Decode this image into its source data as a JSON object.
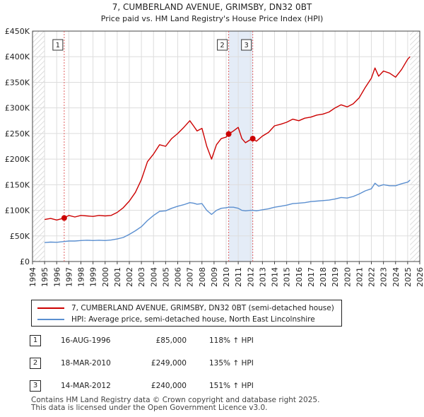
{
  "chart_data": {
    "type": "line",
    "title": "7, CUMBERLAND AVENUE, GRIMSBY, DN32 0BT",
    "subtitle": "Price paid vs. HM Land Registry's House Price Index (HPI)",
    "x_ticks": [
      "1994",
      "1995",
      "1996",
      "1997",
      "1998",
      "1999",
      "2000",
      "2001",
      "2002",
      "2003",
      "2004",
      "2005",
      "2006",
      "2007",
      "2008",
      "2009",
      "2010",
      "2011",
      "2012",
      "2013",
      "2014",
      "2015",
      "2016",
      "2017",
      "2018",
      "2019",
      "2020",
      "2021",
      "2022",
      "2023",
      "2024",
      "2025",
      "2026"
    ],
    "y_ticks": [
      "£0",
      "£50K",
      "£100K",
      "£150K",
      "£200K",
      "£250K",
      "£300K",
      "£350K",
      "£400K",
      "£450K"
    ],
    "xlim": [
      1994,
      2026
    ],
    "ylim": [
      0,
      450000
    ],
    "grid": true,
    "hatched_ranges": [
      [
        1994,
        1995
      ],
      [
        2025.2,
        2026
      ]
    ],
    "series": [
      {
        "name": "7, CUMBERLAND AVENUE, GRIMSBY, DN32 0BT (semi-detached house)",
        "color": "#cc0000",
        "x": [
          1995.0,
          1995.5,
          1996.0,
          1996.62,
          1997.0,
          1997.5,
          1998.0,
          1998.5,
          1999.0,
          1999.5,
          2000.0,
          2000.5,
          2001.0,
          2001.5,
          2002.0,
          2002.5,
          2003.0,
          2003.5,
          2004.0,
          2004.5,
          2005.0,
          2005.5,
          2006.0,
          2006.5,
          2007.0,
          2007.3,
          2007.6,
          2008.0,
          2008.4,
          2008.8,
          2009.2,
          2009.6,
          2010.0,
          2010.21,
          2010.6,
          2011.0,
          2011.3,
          2011.6,
          2012.0,
          2012.2,
          2012.5,
          2013.0,
          2013.5,
          2014.0,
          2014.5,
          2015.0,
          2015.5,
          2016.0,
          2016.5,
          2017.0,
          2017.5,
          2018.0,
          2018.5,
          2019.0,
          2019.5,
          2020.0,
          2020.5,
          2021.0,
          2021.5,
          2022.0,
          2022.3,
          2022.6,
          2023.0,
          2023.5,
          2024.0,
          2024.5,
          2025.0,
          2025.2
        ],
        "values": [
          82000,
          84000,
          81000,
          85000,
          90000,
          87000,
          90000,
          89000,
          88000,
          90000,
          89000,
          90000,
          96000,
          105000,
          118000,
          135000,
          160000,
          195000,
          210000,
          228000,
          225000,
          240000,
          250000,
          262000,
          275000,
          265000,
          255000,
          260000,
          225000,
          200000,
          228000,
          240000,
          243000,
          249000,
          255000,
          262000,
          240000,
          232000,
          238000,
          240000,
          235000,
          245000,
          252000,
          265000,
          268000,
          272000,
          278000,
          275000,
          280000,
          282000,
          286000,
          288000,
          292000,
          300000,
          306000,
          302000,
          308000,
          320000,
          340000,
          358000,
          378000,
          362000,
          372000,
          368000,
          360000,
          375000,
          395000,
          400000
        ]
      },
      {
        "name": "HPI: Average price, semi-detached house, North East Lincolnshire",
        "color": "#5b8fd0",
        "x": [
          1995.0,
          1995.5,
          1996.0,
          1996.62,
          1997.0,
          1997.5,
          1998.0,
          1998.5,
          1999.0,
          1999.5,
          2000.0,
          2000.5,
          2001.0,
          2001.5,
          2002.0,
          2002.5,
          2003.0,
          2003.5,
          2004.0,
          2004.5,
          2005.0,
          2005.5,
          2006.0,
          2006.5,
          2007.0,
          2007.3,
          2007.6,
          2008.0,
          2008.4,
          2008.8,
          2009.2,
          2009.6,
          2010.0,
          2010.21,
          2010.6,
          2011.0,
          2011.3,
          2011.6,
          2012.0,
          2012.2,
          2012.5,
          2013.0,
          2013.5,
          2014.0,
          2014.5,
          2015.0,
          2015.5,
          2016.0,
          2016.5,
          2017.0,
          2017.5,
          2018.0,
          2018.5,
          2019.0,
          2019.5,
          2020.0,
          2020.5,
          2021.0,
          2021.5,
          2022.0,
          2022.3,
          2022.6,
          2023.0,
          2023.5,
          2024.0,
          2024.5,
          2025.0,
          2025.2
        ],
        "values": [
          37000,
          38000,
          37500,
          39000,
          40000,
          40000,
          41000,
          41500,
          41000,
          41500,
          41000,
          42000,
          44000,
          47000,
          53000,
          60000,
          68000,
          80000,
          90000,
          98000,
          99000,
          104000,
          108000,
          111000,
          115000,
          114000,
          112000,
          113000,
          100000,
          92000,
          100000,
          104000,
          105000,
          106000,
          106000,
          104000,
          100000,
          99000,
          100000,
          100000,
          99000,
          101000,
          103000,
          106000,
          108000,
          110000,
          113000,
          114000,
          115000,
          117000,
          118000,
          119000,
          120000,
          122000,
          125000,
          124000,
          127000,
          132000,
          138000,
          142000,
          153000,
          147000,
          150000,
          148000,
          148000,
          152000,
          155000,
          159000
        ]
      }
    ],
    "sales": [
      {
        "label": "1",
        "x": 1996.62,
        "value": 85000
      },
      {
        "label": "2",
        "x": 2010.21,
        "value": 249000
      },
      {
        "label": "3",
        "x": 2012.2,
        "value": 240000
      }
    ],
    "highlight_range": [
      2010.21,
      2012.2
    ]
  },
  "legend": {
    "property_label": "7, CUMBERLAND AVENUE, GRIMSBY, DN32 0BT (semi-detached house)",
    "hpi_label": "HPI: Average price, semi-detached house, North East Lincolnshire"
  },
  "transactions": [
    {
      "num": "1",
      "date": "16-AUG-1996",
      "price": "£85,000",
      "hpi": "118% ↑ HPI"
    },
    {
      "num": "2",
      "date": "18-MAR-2010",
      "price": "£249,000",
      "hpi": "135% ↑ HPI"
    },
    {
      "num": "3",
      "date": "14-MAR-2012",
      "price": "£240,000",
      "hpi": "151% ↑ HPI"
    }
  ],
  "footer": {
    "line1": "Contains HM Land Registry data © Crown copyright and database right 2025.",
    "line2": "This data is licensed under the Open Government Licence v3.0."
  }
}
